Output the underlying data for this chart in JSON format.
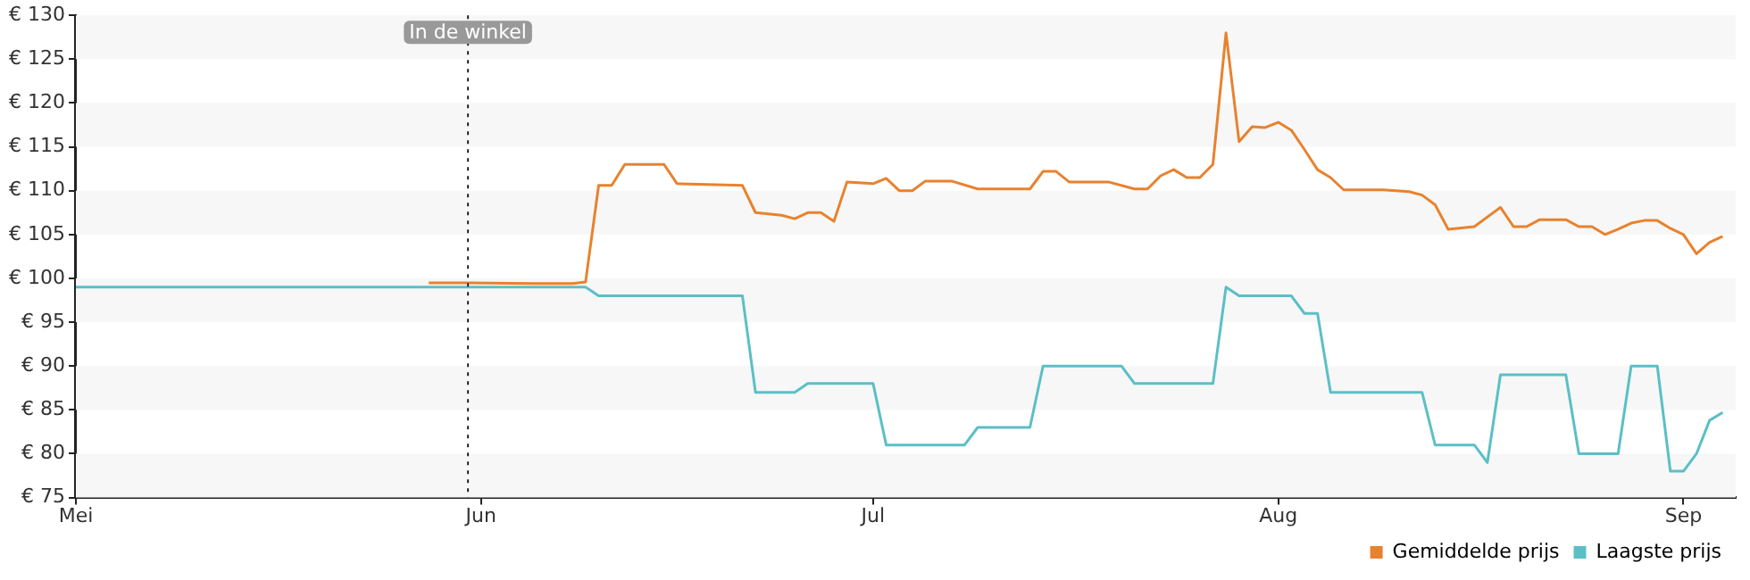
{
  "chart_data": {
    "type": "line",
    "legend": "bottom right",
    "marker": "none",
    "line_style": "solid",
    "xlim": [
      "--05-01",
      "--09-05"
    ],
    "xticks": [
      {
        "value": "--05-01",
        "label": "Mei"
      },
      {
        "value": "--06-01",
        "label": "Jun"
      },
      {
        "value": "--07-01",
        "label": "Jul"
      },
      {
        "value": "--08-01",
        "label": "Aug"
      },
      {
        "value": "--09-01",
        "label": "Sep"
      }
    ],
    "ylim": [
      75,
      130
    ],
    "yticks": [
      {
        "value": 75,
        "label": "€ 75"
      },
      {
        "value": 80,
        "label": "€ 80"
      },
      {
        "value": 85,
        "label": "€ 85"
      },
      {
        "value": 90,
        "label": "€ 90"
      },
      {
        "value": 95,
        "label": "€ 95"
      },
      {
        "value": 100,
        "label": "€ 100"
      },
      {
        "value": 105,
        "label": "€ 105"
      },
      {
        "value": 110,
        "label": "€ 110"
      },
      {
        "value": 115,
        "label": "€ 115"
      },
      {
        "value": 120,
        "label": "€ 120"
      },
      {
        "value": 125,
        "label": "€ 125"
      },
      {
        "value": 130,
        "label": "€ 130"
      }
    ],
    "ref_lines": [
      {
        "axis": "x",
        "value": "--05-31",
        "label": "In de winkel",
        "line_style": "dotted",
        "color": "#222222"
      }
    ],
    "series": [
      {
        "name": "Gemiddelde prijs",
        "color": "#e8822e",
        "x": [
          "--05-28",
          "--05-31",
          "--06-05",
          "--06-08",
          "--06-09",
          "--06-10",
          "--06-11",
          "--06-12",
          "--06-15",
          "--06-16",
          "--06-21",
          "--06-22",
          "--06-24",
          "--06-25",
          "--06-26",
          "--06-27",
          "--06-28",
          "--06-29",
          "--07-01",
          "--07-02",
          "--07-03",
          "--07-04",
          "--07-05",
          "--07-07",
          "--07-09",
          "--07-13",
          "--07-14",
          "--07-15",
          "--07-16",
          "--07-19",
          "--07-21",
          "--07-22",
          "--07-23",
          "--07-24",
          "--07-25",
          "--07-26",
          "--07-27",
          "--07-28",
          "--07-29",
          "--07-30",
          "--07-31",
          "--08-01",
          "--08-02",
          "--08-03",
          "--08-04",
          "--08-05",
          "--08-06",
          "--08-09",
          "--08-11",
          "--08-12",
          "--08-13",
          "--08-14",
          "--08-16",
          "--08-18",
          "--08-19",
          "--08-20",
          "--08-21",
          "--08-23",
          "--08-24",
          "--08-25",
          "--08-26",
          "--08-27",
          "--08-28",
          "--08-29",
          "--08-30",
          "--08-31",
          "--09-01",
          "--09-02",
          "--09-03",
          "--09-04"
        ],
        "values": [
          99.5,
          99.5,
          99.4,
          99.4,
          99.6,
          110.6,
          110.6,
          113,
          113,
          110.8,
          110.6,
          107.5,
          107.2,
          106.8,
          107.5,
          107.5,
          106.5,
          111,
          110.8,
          111.4,
          110,
          110,
          111.1,
          111.1,
          110.2,
          110.2,
          112.2,
          112.2,
          111,
          111,
          110.2,
          110.2,
          111.7,
          112.4,
          111.5,
          111.5,
          113,
          128,
          115.6,
          117.3,
          117.2,
          117.8,
          116.9,
          114.7,
          112.4,
          111.5,
          110.1,
          110.1,
          109.9,
          109.5,
          108.4,
          105.6,
          105.9,
          108.1,
          105.9,
          105.9,
          106.7,
          106.7,
          105.9,
          105.9,
          105,
          105.6,
          106.3,
          106.6,
          106.6,
          105.7,
          105,
          102.8,
          104.1,
          104.8
        ]
      },
      {
        "name": "Laagste prijs",
        "color": "#5bbfc6",
        "x": [
          "--05-01",
          "--06-08",
          "--06-09",
          "--06-10",
          "--06-21",
          "--06-22",
          "--06-25",
          "--06-26",
          "--07-01",
          "--07-02",
          "--07-08",
          "--07-09",
          "--07-13",
          "--07-14",
          "--07-20",
          "--07-21",
          "--07-27",
          "--07-28",
          "--07-29",
          "--08-02",
          "--08-03",
          "--08-04",
          "--08-05",
          "--08-12",
          "--08-13",
          "--08-16",
          "--08-17",
          "--08-18",
          "--08-23",
          "--08-24",
          "--08-27",
          "--08-28",
          "--08-30",
          "--08-31",
          "--09-01",
          "--09-02",
          "--09-03",
          "--09-04"
        ],
        "values": [
          99,
          99,
          99,
          98,
          98,
          87,
          87,
          88,
          88,
          81,
          81,
          83,
          83,
          90,
          90,
          88,
          88,
          99,
          98,
          98,
          96,
          96,
          87,
          87,
          81,
          81,
          79,
          89,
          89,
          80,
          80,
          90,
          90,
          78,
          78,
          80,
          83.8,
          84.7
        ]
      }
    ]
  }
}
